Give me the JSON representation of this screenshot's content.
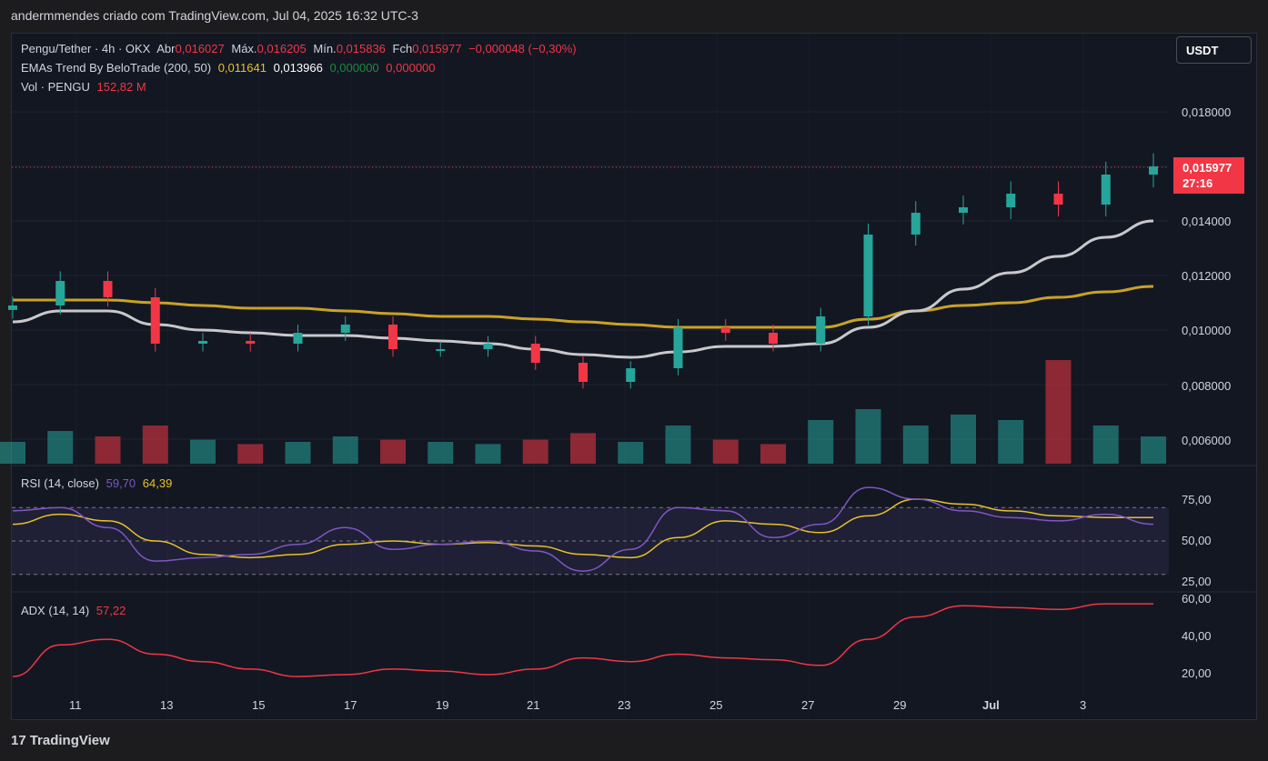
{
  "topbar": {
    "text": "andermmendes criado com TradingView.com, Jul 04, 2025 16:32 UTC-3"
  },
  "legend": {
    "symbol": "Pengu/Tether · 4h · OKX",
    "open_label": "Abr",
    "open": "0,016027",
    "high_label": "Máx.",
    "high": "0,016205",
    "low_label": "Mín.",
    "low": "0,015836",
    "close_label": "Fch",
    "close": "0,015977",
    "change": "−0,000048 (−0,30%)",
    "ema_name": "EMAs Trend By BeloTrade (200, 50)",
    "ema_v1": "0,011641",
    "ema_v2": "0,013966",
    "ema_v3": "0,000000",
    "ema_v4": "0,000000",
    "vol_name": "Vol · PENGU",
    "vol_value": "152,82 M"
  },
  "currency_button": "USDT",
  "last_price": {
    "price": "0,015977",
    "countdown": "27:16"
  },
  "price_axis": [
    "0,018000",
    "0,014000",
    "0,012000",
    "0,010000",
    "0,008000",
    "0,006000"
  ],
  "rsi": {
    "name": "RSI (14, close)",
    "value": "59,70",
    "ma": "64,39",
    "axis": [
      "75,00",
      "50,00",
      "25,00"
    ]
  },
  "adx": {
    "name": "ADX (14, 14)",
    "value": "57,22",
    "axis": [
      "60,00",
      "40,00",
      "20,00"
    ]
  },
  "time_axis": [
    "11",
    "13",
    "15",
    "17",
    "19",
    "21",
    "23",
    "25",
    "27",
    "29",
    "Jul",
    "3"
  ],
  "footer": {
    "brand": "TradingView",
    "logo": "17"
  },
  "colors": {
    "up": "#26a69a",
    "down": "#f23645",
    "ema200": "#c9a227",
    "ema50": "#c8c8cc",
    "rsi": "#7e57c2",
    "rsi_ma": "#e6c229",
    "adx": "#f23645"
  },
  "chart_data": [
    {
      "type": "candlestick",
      "title": "Pengu/Tether · 4h · OKX",
      "x": [
        "Jun 10",
        "Jun 11",
        "Jun 12",
        "Jun 13",
        "Jun 14",
        "Jun 15",
        "Jun 16",
        "Jun 17",
        "Jun 18",
        "Jun 19",
        "Jun 20",
        "Jun 21",
        "Jun 22",
        "Jun 23",
        "Jun 24",
        "Jun 25",
        "Jun 26",
        "Jun 27",
        "Jun 28",
        "Jun 29",
        "Jun 30",
        "Jul 01",
        "Jul 02",
        "Jul 03",
        "Jul 04"
      ],
      "close": [
        0.0109,
        0.0118,
        0.0112,
        0.0095,
        0.0096,
        0.0095,
        0.0099,
        0.0102,
        0.0093,
        0.0093,
        0.0095,
        0.0088,
        0.0081,
        0.0086,
        0.0101,
        0.0099,
        0.0095,
        0.0105,
        0.0135,
        0.0143,
        0.0145,
        0.015,
        0.0146,
        0.0157,
        0.016
      ],
      "ylim": [
        0.0055,
        0.0192
      ],
      "series": [
        {
          "name": "EMA 200",
          "values": [
            0.0111,
            0.0111,
            0.0111,
            0.011,
            0.0109,
            0.0108,
            0.0108,
            0.0107,
            0.0106,
            0.0105,
            0.0105,
            0.0104,
            0.0103,
            0.0102,
            0.0101,
            0.0101,
            0.0101,
            0.0101,
            0.0104,
            0.0107,
            0.0109,
            0.011,
            0.0112,
            0.0114,
            0.0116
          ]
        },
        {
          "name": "EMA 50",
          "values": [
            0.0103,
            0.0107,
            0.0107,
            0.0102,
            0.01,
            0.0099,
            0.0098,
            0.0098,
            0.0097,
            0.0096,
            0.0095,
            0.0093,
            0.0091,
            0.009,
            0.0092,
            0.0094,
            0.0094,
            0.0095,
            0.0101,
            0.0107,
            0.0115,
            0.0121,
            0.0127,
            0.0134,
            0.014
          ]
        }
      ]
    },
    {
      "type": "bar",
      "title": "Vol · PENGU",
      "categories": [
        "Jun 10",
        "Jun 11",
        "Jun 12",
        "Jun 13",
        "Jun 14",
        "Jun 15",
        "Jun 16",
        "Jun 17",
        "Jun 18",
        "Jun 19",
        "Jun 20",
        "Jun 21",
        "Jun 22",
        "Jun 23",
        "Jun 24",
        "Jun 25",
        "Jun 26",
        "Jun 27",
        "Jun 28",
        "Jun 29",
        "Jun 30",
        "Jul 01",
        "Jul 02",
        "Jul 03",
        "Jul 04"
      ],
      "values": [
        0.2,
        0.3,
        0.25,
        0.35,
        0.22,
        0.18,
        0.2,
        0.25,
        0.22,
        0.2,
        0.18,
        0.22,
        0.28,
        0.2,
        0.35,
        0.22,
        0.18,
        0.4,
        0.5,
        0.35,
        0.45,
        0.4,
        0.95,
        0.35,
        0.25
      ]
    },
    {
      "type": "line",
      "title": "RSI (14, close)",
      "x": [
        "Jun 10",
        "Jun 11",
        "Jun 12",
        "Jun 13",
        "Jun 14",
        "Jun 15",
        "Jun 16",
        "Jun 17",
        "Jun 18",
        "Jun 19",
        "Jun 20",
        "Jun 21",
        "Jun 22",
        "Jun 23",
        "Jun 24",
        "Jun 25",
        "Jun 26",
        "Jun 27",
        "Jun 28",
        "Jun 29",
        "Jun 30",
        "Jul 01",
        "Jul 02",
        "Jul 03",
        "Jul 04"
      ],
      "ylim": [
        20,
        85
      ],
      "series": [
        {
          "name": "RSI",
          "values": [
            68,
            70,
            58,
            38,
            40,
            42,
            48,
            58,
            45,
            48,
            50,
            44,
            32,
            45,
            70,
            68,
            52,
            60,
            82,
            75,
            68,
            64,
            62,
            66,
            60
          ]
        },
        {
          "name": "RSI MA",
          "values": [
            60,
            66,
            62,
            50,
            42,
            40,
            42,
            48,
            50,
            48,
            49,
            47,
            42,
            40,
            52,
            62,
            60,
            55,
            65,
            75,
            72,
            68,
            65,
            64,
            64
          ]
        }
      ]
    },
    {
      "type": "line",
      "title": "ADX (14, 14)",
      "x": [
        "Jun 10",
        "Jun 11",
        "Jun 12",
        "Jun 13",
        "Jun 14",
        "Jun 15",
        "Jun 16",
        "Jun 17",
        "Jun 18",
        "Jun 19",
        "Jun 20",
        "Jun 21",
        "Jun 22",
        "Jun 23",
        "Jun 24",
        "Jun 25",
        "Jun 26",
        "Jun 27",
        "Jun 28",
        "Jun 29",
        "Jun 30",
        "Jul 01",
        "Jul 02",
        "Jul 03",
        "Jul 04"
      ],
      "ylim": [
        10,
        62
      ],
      "series": [
        {
          "name": "ADX",
          "values": [
            18,
            35,
            38,
            30,
            26,
            22,
            18,
            19,
            22,
            21,
            19,
            22,
            28,
            26,
            30,
            28,
            27,
            24,
            38,
            50,
            56,
            55,
            54,
            57,
            57
          ]
        }
      ]
    }
  ]
}
